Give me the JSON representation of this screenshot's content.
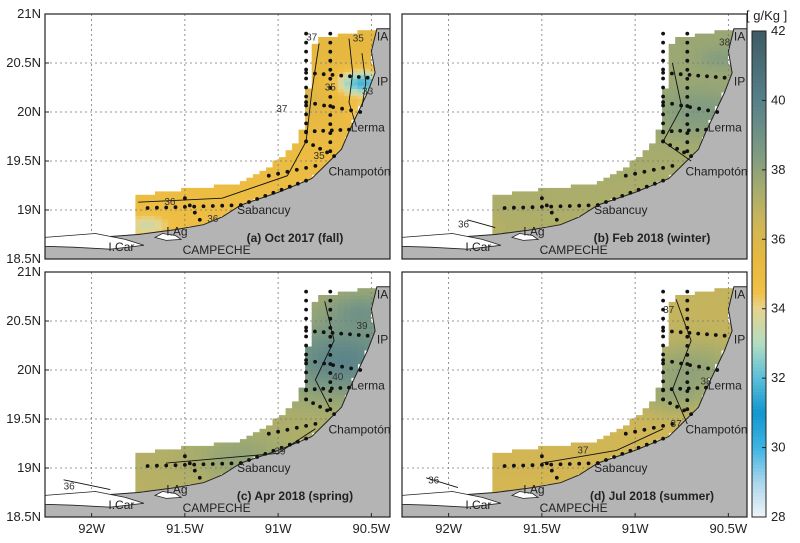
{
  "chart_data": {
    "type": "heatmap",
    "unit_label": "[ g/Kg ]",
    "colorbar": {
      "range": [
        28,
        42
      ],
      "ticks": [
        "42",
        "40",
        "38",
        "36",
        "34",
        "32",
        "30",
        "28"
      ],
      "stops": [
        {
          "v": 28,
          "c": "#f0f4f8"
        },
        {
          "v": 29,
          "c": "#a9d6ec"
        },
        {
          "v": 30,
          "c": "#3cb4e3"
        },
        {
          "v": 31,
          "c": "#1396d0"
        },
        {
          "v": 32,
          "c": "#5bbfd8"
        },
        {
          "v": 33,
          "c": "#b3dcc1"
        },
        {
          "v": 34,
          "c": "#e6d48c"
        },
        {
          "v": 34.5,
          "c": "#f0bf45"
        },
        {
          "v": 35.5,
          "c": "#e6b840"
        },
        {
          "v": 36.5,
          "c": "#cdb659"
        },
        {
          "v": 37.5,
          "c": "#a3ab6f"
        },
        {
          "v": 38.5,
          "c": "#7d9a83"
        },
        {
          "v": 40,
          "c": "#56818a"
        },
        {
          "v": 42,
          "c": "#3e5a64"
        }
      ]
    },
    "x_ticks": [
      "92W",
      "91.5W",
      "91W",
      "90.5W"
    ],
    "y_ticks": [
      "21N",
      "20.5N",
      "20N",
      "19.5N",
      "19N",
      "18.5N"
    ],
    "lon_range": [
      -92.25,
      -90.4
    ],
    "lat_range": [
      18.5,
      21.0
    ],
    "coast": [
      [
        -90.4,
        20.85
      ],
      [
        -90.47,
        20.85
      ],
      [
        -90.5,
        20.62
      ],
      [
        -90.48,
        20.4
      ],
      [
        -90.52,
        20.2
      ],
      [
        -90.57,
        20.0
      ],
      [
        -90.62,
        19.8
      ],
      [
        -90.66,
        19.62
      ],
      [
        -90.75,
        19.45
      ],
      [
        -90.82,
        19.32
      ],
      [
        -91.0,
        19.18
      ],
      [
        -91.2,
        19.05
      ],
      [
        -91.3,
        18.93
      ],
      [
        -91.4,
        18.85
      ],
      [
        -91.55,
        18.8
      ],
      [
        -91.75,
        18.75
      ],
      [
        -91.9,
        18.73
      ],
      [
        -92.1,
        18.7
      ],
      [
        -92.25,
        18.69
      ],
      [
        -92.25,
        18.5
      ],
      [
        -90.4,
        18.5
      ]
    ],
    "places": [
      {
        "name": "IA",
        "lon": -90.47,
        "lat": 20.73
      },
      {
        "name": "IP",
        "lon": -90.47,
        "lat": 20.27
      },
      {
        "name": "Lerma",
        "lon": -90.61,
        "lat": 19.8
      },
      {
        "name": "Champotón",
        "lon": -90.73,
        "lat": 19.35
      },
      {
        "name": "Sabancuy",
        "lon": -91.22,
        "lat": 18.96
      },
      {
        "name": "I.Ag",
        "lon": -91.6,
        "lat": 18.74
      },
      {
        "name": "I.Car",
        "lon": -91.91,
        "lat": 18.58
      },
      {
        "name": "CAMPECHE",
        "lon": -91.33,
        "lat": 18.55
      }
    ],
    "panels": [
      {
        "label": "(a) Oct 2017 (fall)",
        "contour_labels": [
          {
            "text": "37",
            "lon": -90.82,
            "lat": 20.73
          },
          {
            "text": "35",
            "lon": -90.57,
            "lat": 20.72
          },
          {
            "text": "33",
            "lon": -90.52,
            "lat": 20.18
          },
          {
            "text": "35",
            "lon": -90.72,
            "lat": 20.22
          },
          {
            "text": "37",
            "lon": -90.98,
            "lat": 20.0
          },
          {
            "text": "35",
            "lon": -90.78,
            "lat": 19.52
          },
          {
            "text": "36",
            "lon": -91.58,
            "lat": 19.05
          },
          {
            "text": "36",
            "lon": -91.35,
            "lat": 18.88
          }
        ]
      },
      {
        "label": "(b) Feb 2018 (winter)",
        "contour_labels": [
          {
            "text": "38",
            "lon": -90.52,
            "lat": 20.68
          },
          {
            "text": "36",
            "lon": -91.92,
            "lat": 18.82
          }
        ]
      },
      {
        "label": "(c) Apr 2018 (spring)",
        "contour_labels": [
          {
            "text": "39",
            "lon": -90.55,
            "lat": 20.42
          },
          {
            "text": "40",
            "lon": -90.68,
            "lat": 19.9
          },
          {
            "text": "39",
            "lon": -90.99,
            "lat": 19.14
          },
          {
            "text": "36",
            "lon": -92.12,
            "lat": 18.78
          }
        ]
      },
      {
        "label": "(d) Jul 2018 (summer)",
        "contour_labels": [
          {
            "text": "37",
            "lon": -90.82,
            "lat": 20.58
          },
          {
            "text": "38",
            "lon": -90.62,
            "lat": 19.85
          },
          {
            "text": "37",
            "lon": -90.78,
            "lat": 19.42
          },
          {
            "text": "37",
            "lon": -91.28,
            "lat": 19.15
          },
          {
            "text": "36",
            "lon": -92.08,
            "lat": 18.84
          }
        ]
      }
    ]
  }
}
